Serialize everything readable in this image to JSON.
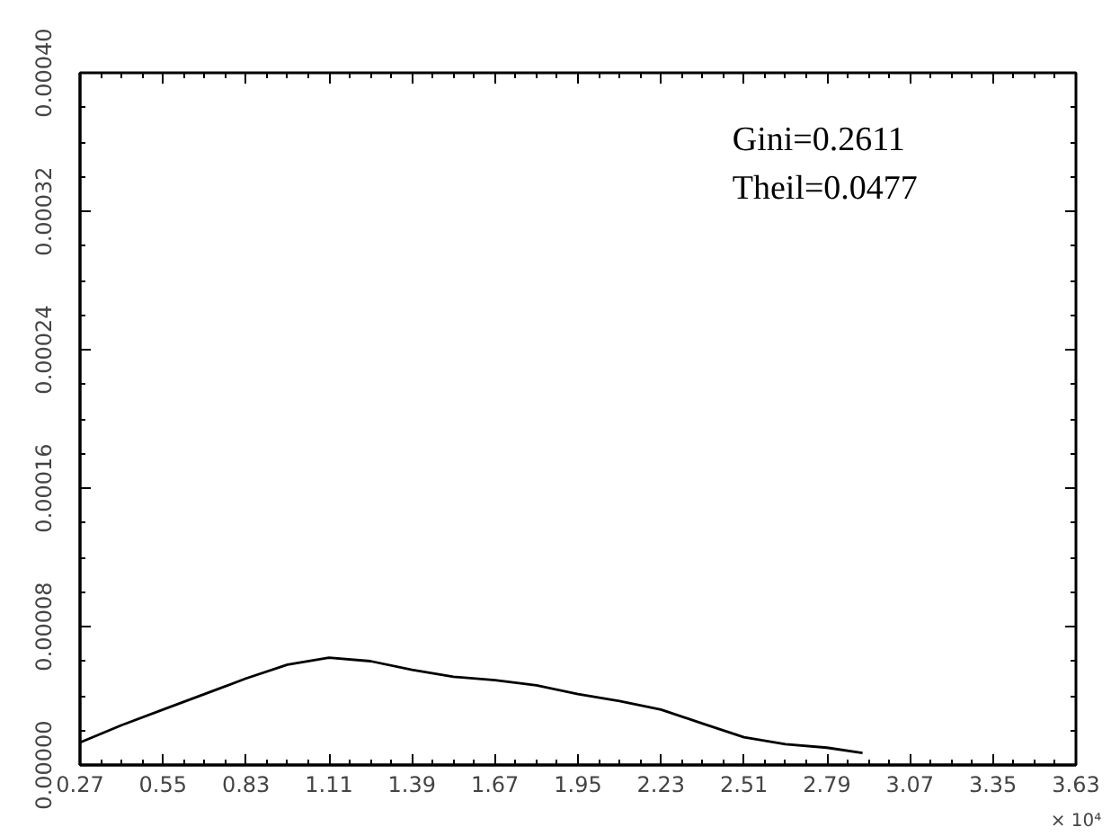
{
  "chart_data": {
    "type": "line",
    "x": [
      0.27,
      0.41,
      0.55,
      0.69,
      0.83,
      0.97,
      1.11,
      1.25,
      1.39,
      1.53,
      1.67,
      1.81,
      1.95,
      2.09,
      2.23,
      2.37,
      2.51,
      2.65,
      2.79,
      2.91
    ],
    "series": [
      {
        "color": "#000000",
        "values": [
          1.3e-05,
          2.3e-05,
          3.2e-05,
          4.1e-05,
          5e-05,
          5.8e-05,
          6.2e-05,
          6e-05,
          5.5e-05,
          5.1e-05,
          4.9e-05,
          4.6e-05,
          4.1e-05,
          3.7e-05,
          3.2e-05,
          2.4e-05,
          1.6e-05,
          1.2e-05,
          1e-05,
          7e-06
        ]
      }
    ],
    "xlim": [
      0.27,
      3.63
    ],
    "ylim": [
      0,
      0.0004
    ],
    "xticks": [
      {
        "value": 0.27,
        "label": "0.27"
      },
      {
        "value": 0.55,
        "label": "0.55"
      },
      {
        "value": 0.83,
        "label": "0.83"
      },
      {
        "value": 1.11,
        "label": "1.11"
      },
      {
        "value": 1.39,
        "label": "1.39"
      },
      {
        "value": 1.67,
        "label": "1.67"
      },
      {
        "value": 1.95,
        "label": "1.95"
      },
      {
        "value": 2.23,
        "label": "2.23"
      },
      {
        "value": 2.51,
        "label": "2.51"
      },
      {
        "value": 2.79,
        "label": "2.79"
      },
      {
        "value": 3.07,
        "label": "3.07"
      },
      {
        "value": 3.35,
        "label": "3.35"
      },
      {
        "value": 3.63,
        "label": "3.63"
      }
    ],
    "yticks": [
      {
        "value": 0,
        "label": "0.00000"
      },
      {
        "value": 8e-05,
        "label": "0.00008"
      },
      {
        "value": 0.00016,
        "label": "0.00016"
      },
      {
        "value": 0.00024,
        "label": "0.00024"
      },
      {
        "value": 0.00032,
        "label": "0.00032"
      },
      {
        "value": 0.0004,
        "label": "0.00040"
      }
    ],
    "xlabel": "× 10⁴",
    "annotations": [
      "Gini=0.2611",
      "Theil=0.0477"
    ],
    "grid": false,
    "marker": "none",
    "line_style": "solid"
  }
}
